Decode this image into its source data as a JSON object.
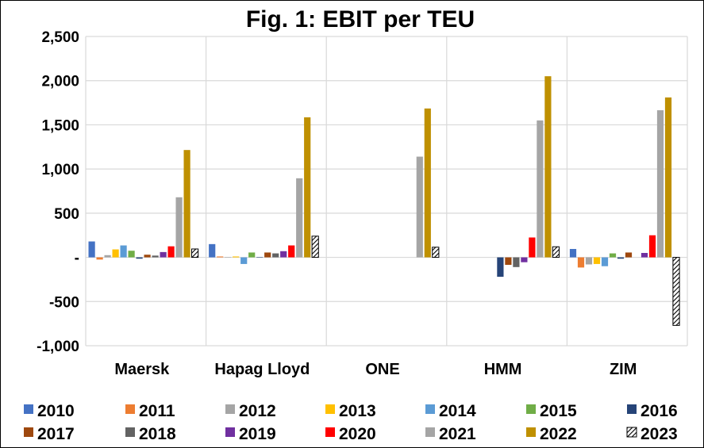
{
  "chart_data": {
    "type": "bar",
    "title": "Fig. 1: EBIT per TEU",
    "xlabel": "",
    "ylabel": "",
    "ylim": [
      -1000,
      2500
    ],
    "yticks": [
      {
        "value": 2500,
        "label": "2,500"
      },
      {
        "value": 2000,
        "label": "2,000"
      },
      {
        "value": 1500,
        "label": "1,500"
      },
      {
        "value": 1000,
        "label": "1,000"
      },
      {
        "value": 500,
        "label": "500"
      },
      {
        "value": 0,
        "label": "-"
      },
      {
        "value": -500,
        "label": "-500"
      },
      {
        "value": -1000,
        "label": "-1,000"
      }
    ],
    "grid": true,
    "legend_position": "bottom",
    "categories": [
      "Maersk",
      "Hapag Lloyd",
      "ONE",
      "HMM",
      "ZIM"
    ],
    "series": [
      {
        "name": "2010",
        "color": "#4472C4",
        "values": [
          180,
          150,
          null,
          null,
          95
        ]
      },
      {
        "name": "2011",
        "color": "#ED7D31",
        "values": [
          -25,
          10,
          null,
          null,
          -115
        ]
      },
      {
        "name": "2012",
        "color": "#A5A5A5",
        "values": [
          25,
          5,
          null,
          null,
          -80
        ]
      },
      {
        "name": "2013",
        "color": "#FFC000",
        "values": [
          90,
          10,
          null,
          null,
          -75
        ]
      },
      {
        "name": "2014",
        "color": "#5B9BD5",
        "values": [
          135,
          -75,
          null,
          null,
          -100
        ]
      },
      {
        "name": "2015",
        "color": "#70AD47",
        "values": [
          75,
          55,
          null,
          null,
          45
        ]
      },
      {
        "name": "2016",
        "color": "#264478",
        "values": [
          -15,
          5,
          null,
          -220,
          -15
        ]
      },
      {
        "name": "2017",
        "color": "#9E480E",
        "values": [
          30,
          55,
          null,
          -85,
          55
        ]
      },
      {
        "name": "2018",
        "color": "#636363",
        "values": [
          20,
          45,
          null,
          -110,
          0
        ]
      },
      {
        "name": "2019",
        "color": "#7030A0",
        "values": [
          60,
          70,
          null,
          -55,
          50
        ]
      },
      {
        "name": "2020",
        "color": "#FF0000",
        "values": [
          125,
          135,
          null,
          225,
          250
        ]
      },
      {
        "name": "2021",
        "color": "#A5A5A5",
        "values": [
          680,
          895,
          1140,
          1550,
          1665
        ]
      },
      {
        "name": "2022",
        "color": "#BF9000",
        "values": [
          1215,
          1585,
          1685,
          2050,
          1810
        ]
      },
      {
        "name": "2023",
        "color": "hatched",
        "values": [
          95,
          240,
          115,
          120,
          -770
        ]
      }
    ]
  }
}
